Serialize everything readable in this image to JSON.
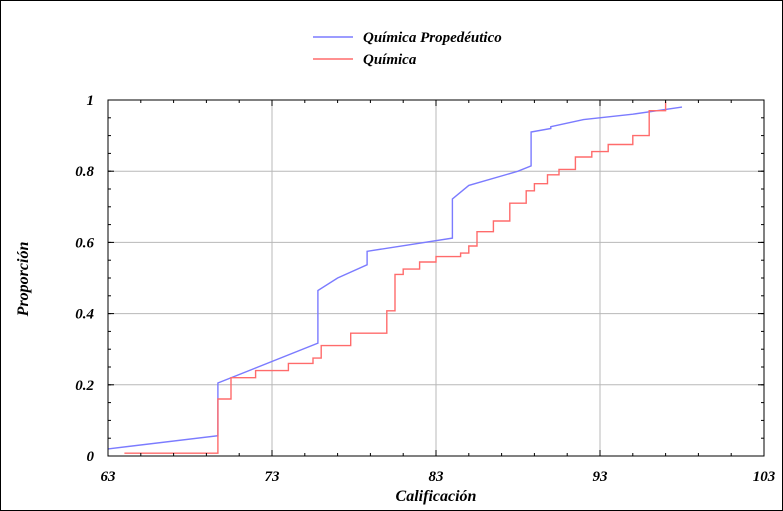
{
  "chart_data": {
    "type": "line",
    "title": "",
    "xlabel": "Calificación",
    "ylabel": "Proporción",
    "xlim": [
      63,
      103
    ],
    "ylim": [
      0,
      1
    ],
    "x_ticks": [
      "63",
      "73",
      "83",
      "93",
      "103"
    ],
    "y_ticks": [
      "0",
      "0.2",
      "0.4",
      "0.6",
      "0.8",
      "1"
    ],
    "grid": true,
    "legend_position": "top-center",
    "series": [
      {
        "name": "Química Propedéutico",
        "color": "#7b7bff",
        "step": false,
        "x": [
          63,
          69.7,
          69.7,
          75.8,
          75.8,
          77,
          78.8,
          78.8,
          84,
          84,
          85,
          88,
          88.8,
          88.8,
          90,
          90,
          92,
          95,
          98
        ],
        "y": [
          0.02,
          0.057,
          0.205,
          0.317,
          0.465,
          0.5,
          0.537,
          0.575,
          0.612,
          0.722,
          0.76,
          0.8,
          0.815,
          0.91,
          0.92,
          0.925,
          0.945,
          0.96,
          0.98
        ]
      },
      {
        "name": "Química",
        "color": "#ff6b6b",
        "step": true,
        "x": [
          64,
          69.7,
          69.7,
          70.5,
          70.5,
          72,
          74,
          75.5,
          76,
          77.8,
          80,
          80,
          80.5,
          81,
          82,
          83,
          84.5,
          85,
          85.5,
          86.5,
          87.5,
          88.5,
          89,
          89.8,
          90.5,
          91.5,
          92.5,
          93.5,
          95,
          96,
          97
        ],
        "y": [
          0.008,
          0.028,
          0.16,
          0.175,
          0.22,
          0.24,
          0.26,
          0.275,
          0.31,
          0.345,
          0.36,
          0.408,
          0.51,
          0.525,
          0.545,
          0.56,
          0.57,
          0.59,
          0.63,
          0.66,
          0.71,
          0.745,
          0.765,
          0.79,
          0.805,
          0.84,
          0.855,
          0.875,
          0.9,
          0.97,
          0.995
        ]
      }
    ]
  }
}
